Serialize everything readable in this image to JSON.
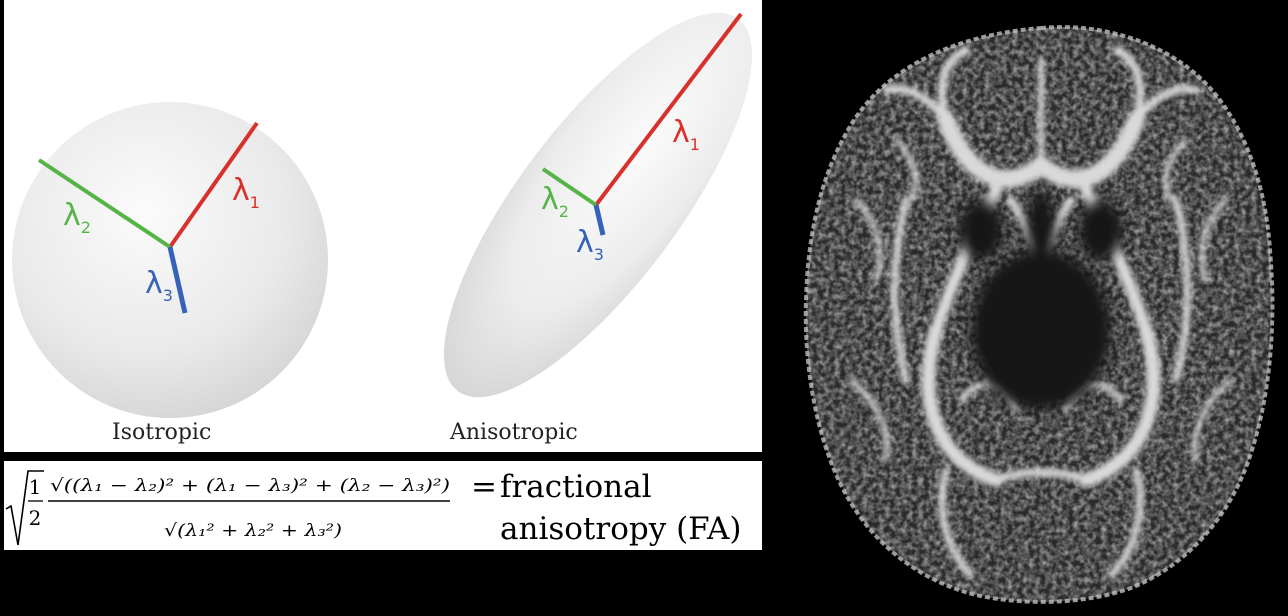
{
  "isotropic": {
    "caption": "Isotropic",
    "lambda1": "λ",
    "lambda1_sub": "1",
    "lambda2": "λ",
    "lambda2_sub": "2",
    "lambda3": "λ",
    "lambda3_sub": "3"
  },
  "anisotropic": {
    "caption": "Anisotropic",
    "lambda1": "λ",
    "lambda1_sub": "1",
    "lambda2": "λ",
    "lambda2_sub": "2",
    "lambda3": "λ",
    "lambda3_sub": "3"
  },
  "formula": {
    "sqrt_half_num": "1",
    "sqrt_half_den": "2",
    "numerator": "√((λ₁ − λ₂)² + (λ₁ − λ₃)² + (λ₂ − λ₃)²)",
    "denominator": "√(λ₁² + λ₂² + λ₃²)",
    "equals": "=",
    "result_line1": "fractional",
    "result_line2": "anisotropy (FA)"
  },
  "colors": {
    "lambda1": "#d8312b",
    "lambda2": "#56b348",
    "lambda3": "#3563b8",
    "background": "#000000",
    "panel": "#ffffff"
  }
}
